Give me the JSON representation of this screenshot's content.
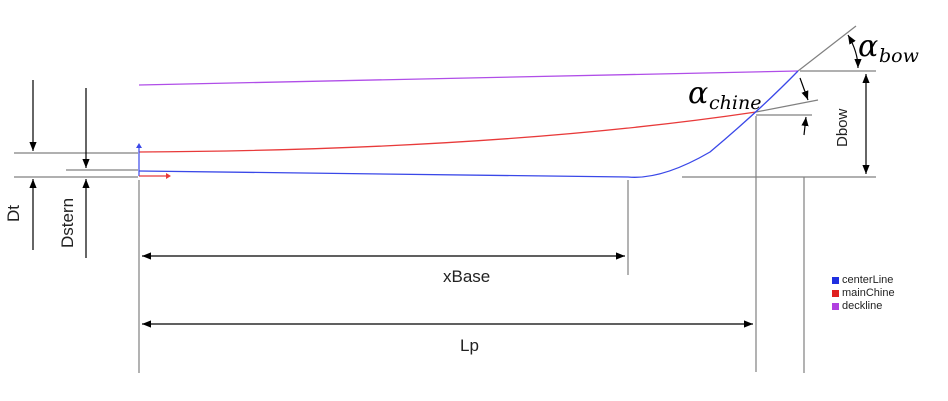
{
  "labels": {
    "xbase": "xBase",
    "lp": "Lp",
    "dt": "Dt",
    "dstern": "Dstern",
    "dbow": "Dbow",
    "alpha_symbol": "α",
    "bow_sub": "bow",
    "chine_sub": "chine"
  },
  "legend": {
    "items": [
      {
        "label": "centerLine",
        "color": "#1f2fe0"
      },
      {
        "label": "mainChine",
        "color": "#e02020"
      },
      {
        "label": "deckline",
        "color": "#b040e0"
      }
    ]
  },
  "colors": {
    "centerline": "#3a48e8",
    "mainchine": "#e83a3a",
    "deckline": "#b04ee8",
    "dimension": "#000000",
    "reference": "#7a7a7a"
  }
}
